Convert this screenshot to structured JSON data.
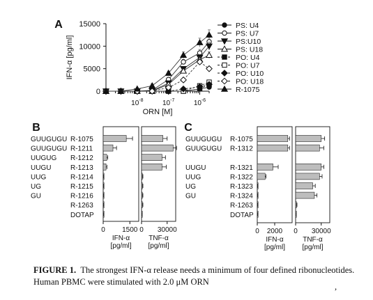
{
  "figure": {
    "caption_label": "FIGURE 1.",
    "caption_text": "The strongest IFN-α release needs a minimum of four defined ribonucleotides. Human PBMC were stimulated with 2.0 μM ORN",
    "caption_edge_mark": ","
  },
  "chart_data": [
    {
      "panel": "A",
      "type": "line",
      "ylabel": "IFN-α [pg/ml]",
      "xlabel": "ORN [M]",
      "xscale": "log",
      "x": [
        1e-09,
        3e-09,
        1e-08,
        3e-08,
        1e-07,
        3e-07,
        1e-06,
        2e-06
      ],
      "x_tick_labels": [
        {
          "text": "10-8",
          "value": 1e-08
        },
        {
          "text": "10-7",
          "value": 1e-07
        },
        {
          "text": "10-6",
          "value": 1e-06
        }
      ],
      "ylim": [
        0,
        15000
      ],
      "y_ticks": [
        0,
        5000,
        10000,
        15000
      ],
      "legend_position": "right",
      "series": [
        {
          "name": "PS: U4",
          "marker": "circle-filled",
          "dash": false,
          "values": [
            0,
            0,
            0,
            0,
            0,
            0,
            500,
            900
          ]
        },
        {
          "name": "PS: U7",
          "marker": "circle-open",
          "dash": false,
          "values": [
            0,
            0,
            0,
            200,
            2600,
            6500,
            8500,
            11000
          ]
        },
        {
          "name": "PS:U10",
          "marker": "tri-down-filled",
          "dash": false,
          "values": [
            0,
            0,
            0,
            100,
            1800,
            5000,
            7500,
            10000
          ]
        },
        {
          "name": "PS: U18",
          "marker": "tri-up-open",
          "dash": false,
          "values": [
            0,
            0,
            0,
            0,
            1500,
            4500,
            7000,
            8000
          ]
        },
        {
          "name": "PO: U4",
          "marker": "square-filled",
          "dash": true,
          "values": [
            0,
            0,
            0,
            0,
            0,
            0,
            500,
            1500
          ]
        },
        {
          "name": "PO: U7",
          "marker": "square-open",
          "dash": true,
          "values": [
            0,
            0,
            0,
            0,
            0,
            0,
            1200,
            2000
          ]
        },
        {
          "name": "PO: U10",
          "marker": "diamond-filled",
          "dash": true,
          "values": [
            0,
            0,
            0,
            0,
            0,
            500,
            1000,
            1500
          ]
        },
        {
          "name": "PO: U18",
          "marker": "diamond-open",
          "dash": true,
          "values": [
            0,
            0,
            0,
            0,
            800,
            2500,
            6500,
            5000
          ]
        },
        {
          "name": "R-1075",
          "marker": "tri-up-filled",
          "dash": false,
          "values": [
            0,
            0,
            500,
            1200,
            4000,
            8000,
            10800,
            12500
          ]
        }
      ]
    },
    {
      "panel": "B",
      "type": "bar",
      "categories": [
        {
          "seq": "GUUGUGU",
          "id": "R-1075"
        },
        {
          "seq": "GUUGUGU",
          "id": "R-1211"
        },
        {
          "seq": "UUGUG",
          "id": "R-1212"
        },
        {
          "seq": "UUGU",
          "id": "R-1213"
        },
        {
          "seq": "UUG",
          "id": "R-1214"
        },
        {
          "seq": "UG",
          "id": "R-1215"
        },
        {
          "seq": "GU",
          "id": "R-1216"
        },
        {
          "seq": "",
          "id": "R-1263"
        },
        {
          "seq": "",
          "id": "DOTAP"
        }
      ],
      "series": [
        {
          "xlabel": "IFN-α\n[pg/ml]",
          "xlim": [
            0,
            2000
          ],
          "ticks": [
            0,
            1500
          ],
          "values": [
            1300,
            550,
            200,
            160,
            15,
            15,
            15,
            15,
            10
          ],
          "errors": [
            350,
            200,
            60,
            50,
            10,
            10,
            10,
            10,
            8
          ]
        },
        {
          "xlabel": "TNF-α\n[pg/ml]",
          "xlim": [
            0,
            40000
          ],
          "ticks": [
            0,
            30000
          ],
          "values": [
            25000,
            37000,
            24000,
            24000,
            1000,
            1000,
            1000,
            1000,
            500
          ],
          "errors": [
            5000,
            4000,
            4000,
            5000,
            600,
            600,
            600,
            600,
            400
          ]
        }
      ]
    },
    {
      "panel": "C",
      "type": "bar",
      "categories": [
        {
          "seq": "GUUGUGU",
          "id": "R-1075"
        },
        {
          "seq": "GUUGUGU",
          "id": "R-1312"
        },
        {
          "seq": "",
          "id": ""
        },
        {
          "seq": "UUGU",
          "id": "R-1321"
        },
        {
          "seq": "UUG",
          "id": "R-1322"
        },
        {
          "seq": "UG",
          "id": "R-1323"
        },
        {
          "seq": "GU",
          "id": "R-1324"
        },
        {
          "seq": "",
          "id": "R-1263"
        },
        {
          "seq": "",
          "id": "DOTAP"
        }
      ],
      "series": [
        {
          "xlabel": "IFN-α\n[pg/ml]",
          "xlim": [
            0,
            4000
          ],
          "ticks": [
            0,
            2000
          ],
          "values": [
            3500,
            3500,
            null,
            1800,
            900,
            30,
            30,
            30,
            20
          ],
          "errors": [
            200,
            200,
            null,
            600,
            100,
            20,
            20,
            20,
            15
          ]
        },
        {
          "xlabel": "TNF-α\n[pg/ml]",
          "xlim": [
            0,
            40000
          ],
          "ticks": [
            0,
            30000
          ],
          "values": [
            30000,
            28000,
            null,
            30000,
            28000,
            20000,
            22000,
            1000,
            500
          ],
          "errors": [
            4000,
            5000,
            null,
            3000,
            3000,
            3000,
            3000,
            600,
            400
          ]
        }
      ]
    }
  ]
}
